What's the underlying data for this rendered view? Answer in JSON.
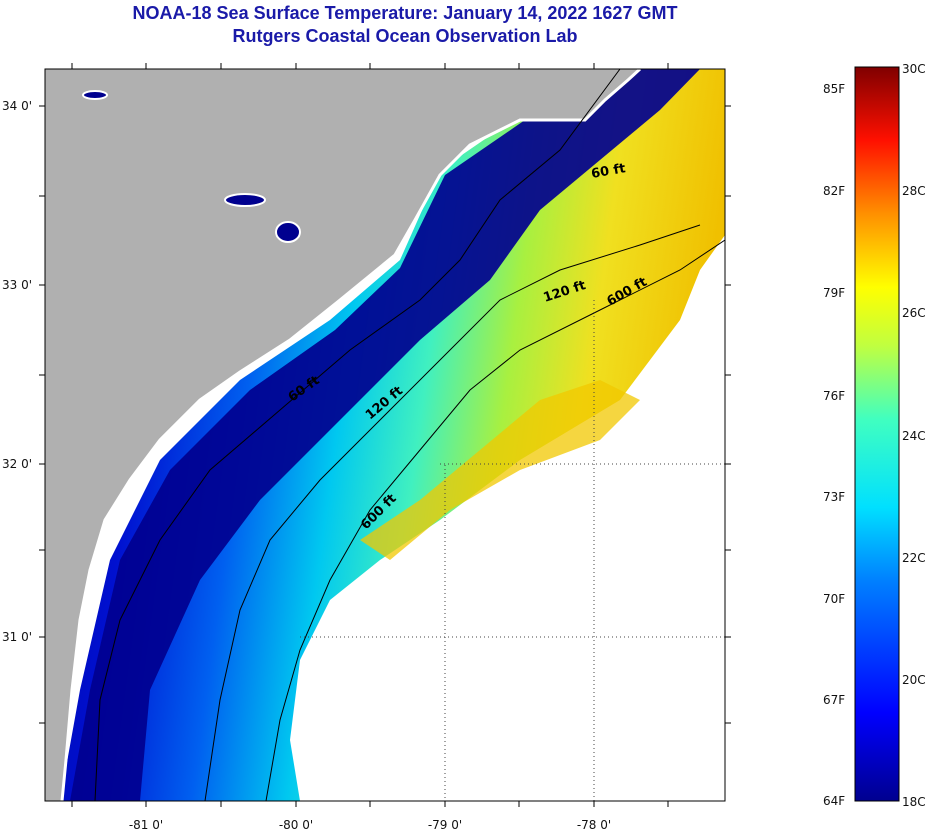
{
  "title_line1": "NOAA-18 Sea Surface Temperature:  January 14, 2022 1627 GMT",
  "title_line2": "Rutgers Coastal Ocean Observation Lab",
  "map": {
    "lat_labels": [
      "34 0'",
      "33 0'",
      "32 0'",
      "31 0'"
    ],
    "lon_labels": [
      "-81 0'",
      "-80 0'",
      "-79 0'",
      "-78 0'"
    ],
    "contours": [
      {
        "label": "60 ft"
      },
      {
        "label": "120 ft"
      },
      {
        "label": "600 ft"
      },
      {
        "label": "60 ft"
      },
      {
        "label": "120 ft"
      },
      {
        "label": "600 ft"
      }
    ]
  },
  "colorbar": {
    "range_c": [
      18,
      30
    ],
    "fahrenheit_labels": [
      "85F",
      "82F",
      "79F",
      "76F",
      "73F",
      "70F",
      "67F",
      "64F"
    ],
    "celsius_labels": [
      "30C",
      "28C",
      "26C",
      "24C",
      "22C",
      "20C",
      "18C"
    ]
  },
  "colors": {
    "land": "#b0b0b0",
    "no_data": "#ffffff",
    "cold": "#00008f",
    "warm": "#800000",
    "title": "#1a1aa8"
  }
}
